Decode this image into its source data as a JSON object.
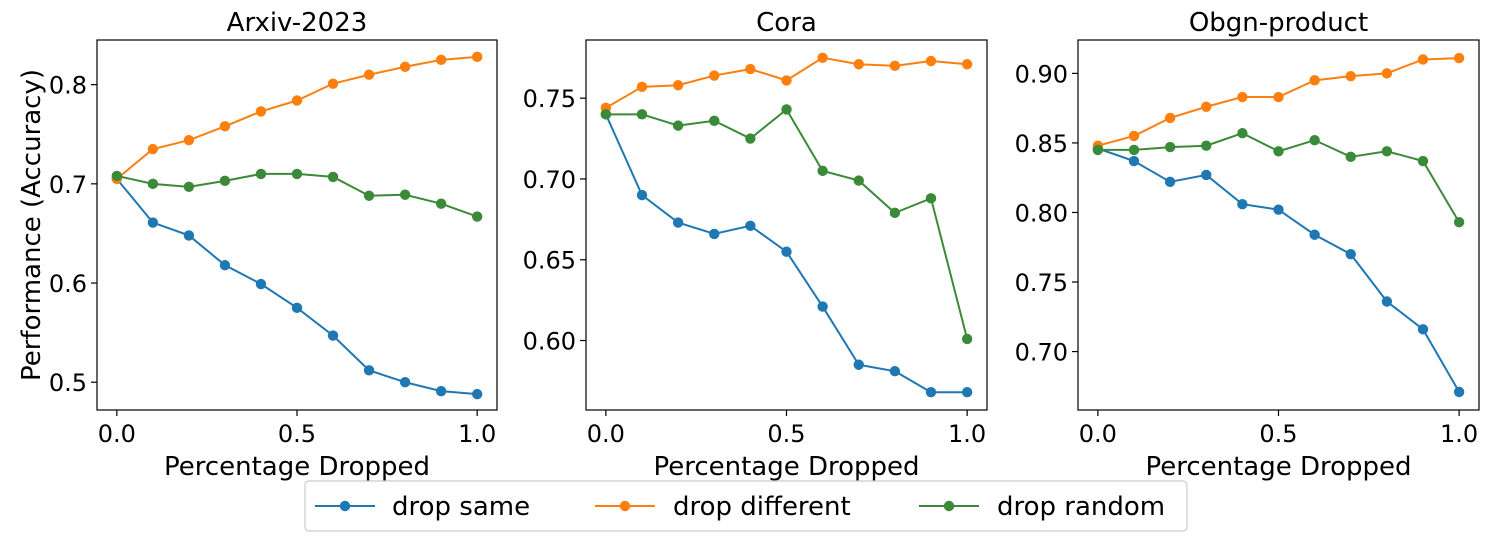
{
  "chart_data": [
    {
      "type": "line",
      "title": "Arxiv-2023",
      "xlabel": "Percentage Dropped",
      "ylabel": "Performance (Accuracy)",
      "x": [
        0.0,
        0.1,
        0.2,
        0.3,
        0.4,
        0.5,
        0.6,
        0.7,
        0.8,
        0.9,
        1.0
      ],
      "xlim": [
        -0.055,
        1.055
      ],
      "ylim": [
        0.472,
        0.845
      ],
      "xticks": [
        0.0,
        0.5,
        1.0
      ],
      "xtick_labels": [
        "0.0",
        "0.5",
        "1.0"
      ],
      "yticks": [
        0.5,
        0.6,
        0.7,
        0.8
      ],
      "ytick_labels": [
        "0.5",
        "0.6",
        "0.7",
        "0.8"
      ],
      "series": [
        {
          "name": "drop same",
          "color": "#1f77b4",
          "values": [
            0.705,
            0.661,
            0.648,
            0.618,
            0.599,
            0.575,
            0.547,
            0.512,
            0.5,
            0.491,
            0.488
          ]
        },
        {
          "name": "drop different",
          "color": "#ff7f0e",
          "values": [
            0.705,
            0.735,
            0.744,
            0.758,
            0.773,
            0.784,
            0.801,
            0.81,
            0.818,
            0.825,
            0.828
          ]
        },
        {
          "name": "drop random",
          "color": "#3a8a3a",
          "values": [
            0.708,
            0.7,
            0.697,
            0.703,
            0.71,
            0.71,
            0.707,
            0.688,
            0.689,
            0.68,
            0.667
          ]
        }
      ]
    },
    {
      "type": "line",
      "title": "Cora",
      "xlabel": "Percentage Dropped",
      "ylabel": "",
      "x": [
        0.0,
        0.1,
        0.2,
        0.3,
        0.4,
        0.5,
        0.6,
        0.7,
        0.8,
        0.9,
        1.0
      ],
      "xlim": [
        -0.055,
        1.055
      ],
      "ylim": [
        0.557,
        0.786
      ],
      "xticks": [
        0.0,
        0.5,
        1.0
      ],
      "xtick_labels": [
        "0.0",
        "0.5",
        "1.0"
      ],
      "yticks": [
        0.6,
        0.65,
        0.7,
        0.75
      ],
      "ytick_labels": [
        "0.60",
        "0.65",
        "0.70",
        "0.75"
      ],
      "series": [
        {
          "name": "drop same",
          "color": "#1f77b4",
          "values": [
            0.74,
            0.69,
            0.673,
            0.666,
            0.671,
            0.655,
            0.621,
            0.585,
            0.581,
            0.568,
            0.568
          ]
        },
        {
          "name": "drop different",
          "color": "#ff7f0e",
          "values": [
            0.744,
            0.757,
            0.758,
            0.764,
            0.768,
            0.761,
            0.775,
            0.771,
            0.77,
            0.773,
            0.771
          ]
        },
        {
          "name": "drop random",
          "color": "#3a8a3a",
          "values": [
            0.74,
            0.74,
            0.733,
            0.736,
            0.725,
            0.743,
            0.705,
            0.699,
            0.679,
            0.688,
            0.601
          ]
        }
      ]
    },
    {
      "type": "line",
      "title": "Obgn-product",
      "xlabel": "Percentage Dropped",
      "ylabel": "",
      "x": [
        0.0,
        0.1,
        0.2,
        0.3,
        0.4,
        0.5,
        0.6,
        0.7,
        0.8,
        0.9,
        1.0
      ],
      "xlim": [
        -0.055,
        1.055
      ],
      "ylim": [
        0.658,
        0.924
      ],
      "xticks": [
        0.0,
        0.5,
        1.0
      ],
      "xtick_labels": [
        "0.0",
        "0.5",
        "1.0"
      ],
      "yticks": [
        0.7,
        0.75,
        0.8,
        0.85,
        0.9
      ],
      "ytick_labels": [
        "0.70",
        "0.75",
        "0.80",
        "0.85",
        "0.90"
      ],
      "series": [
        {
          "name": "drop same",
          "color": "#1f77b4",
          "values": [
            0.846,
            0.837,
            0.822,
            0.827,
            0.806,
            0.802,
            0.784,
            0.77,
            0.736,
            0.716,
            0.671
          ]
        },
        {
          "name": "drop different",
          "color": "#ff7f0e",
          "values": [
            0.848,
            0.855,
            0.868,
            0.876,
            0.883,
            0.883,
            0.895,
            0.898,
            0.9,
            0.91,
            0.911
          ]
        },
        {
          "name": "drop random",
          "color": "#3a8a3a",
          "values": [
            0.845,
            0.845,
            0.847,
            0.848,
            0.857,
            0.844,
            0.852,
            0.84,
            0.844,
            0.837,
            0.793
          ]
        }
      ]
    }
  ],
  "legend": {
    "placement": "bottom-center",
    "entries": [
      {
        "label": "drop same",
        "color": "#1f77b4"
      },
      {
        "label": "drop different",
        "color": "#ff7f0e"
      },
      {
        "label": "drop random",
        "color": "#3a8a3a"
      }
    ]
  }
}
